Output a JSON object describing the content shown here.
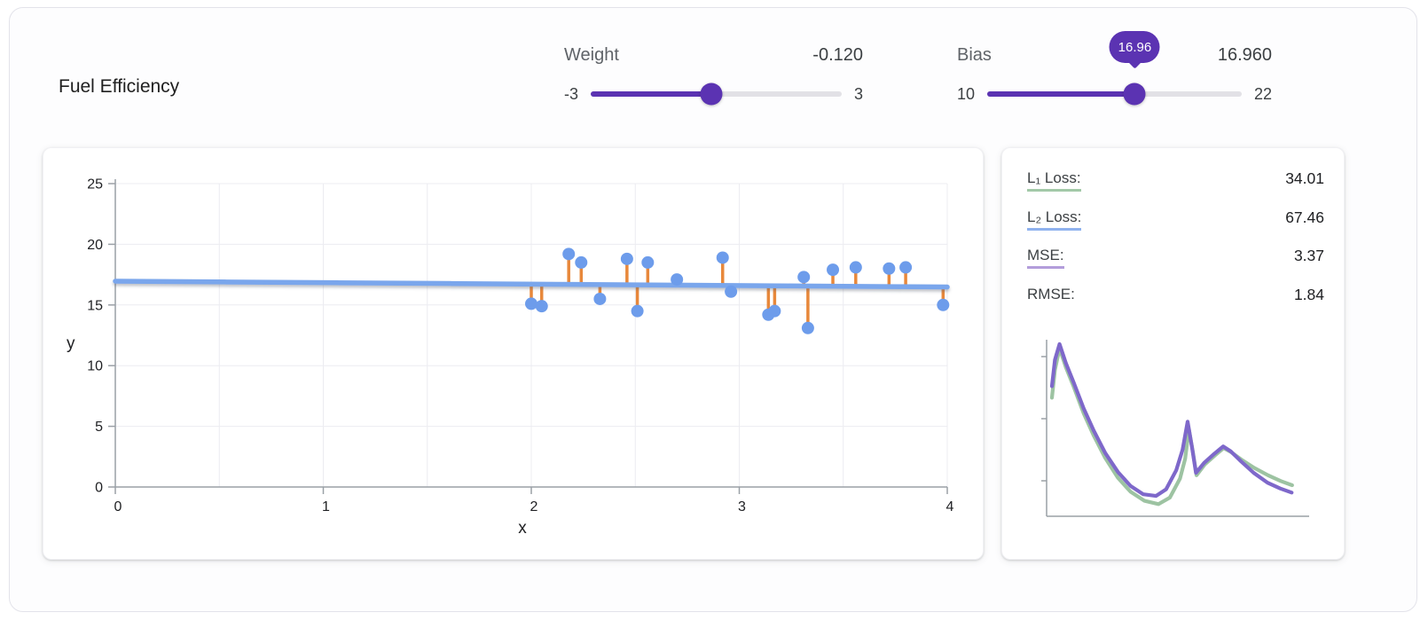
{
  "title": "Fuel Efficiency",
  "controls": {
    "weight": {
      "label": "Weight",
      "value": "-0.120",
      "min": "-3",
      "max": "3"
    },
    "bias": {
      "label": "Bias",
      "value": "16.960",
      "min": "10",
      "max": "22",
      "tooltip": "16.96"
    }
  },
  "colors": {
    "accent_purple": "#5b33b2",
    "track_gray": "#e2e1e6",
    "point_blue": "#6d9ceb",
    "line_blue": "#7aa6ec",
    "residual_orange": "#e8883b",
    "axis_gray": "#9aa0a6",
    "grid_gray": "#ececf1"
  },
  "chart_data": {
    "type": "scatter",
    "xlabel": "x",
    "ylabel": "y",
    "xlim": [
      0,
      4
    ],
    "ylim": [
      0,
      25
    ],
    "xticks": [
      0,
      1,
      2,
      3,
      4
    ],
    "xgrid": [
      0.5,
      1,
      1.5,
      2,
      2.5,
      3,
      3.5,
      4
    ],
    "yticks": [
      0,
      5,
      10,
      15,
      20,
      25
    ],
    "model_line": {
      "weight": -0.12,
      "bias": 16.96
    },
    "points": [
      {
        "x": 2.0,
        "y": 15.1
      },
      {
        "x": 2.05,
        "y": 14.9
      },
      {
        "x": 2.18,
        "y": 19.2
      },
      {
        "x": 2.24,
        "y": 18.5
      },
      {
        "x": 2.33,
        "y": 15.5
      },
      {
        "x": 2.46,
        "y": 18.8
      },
      {
        "x": 2.51,
        "y": 14.5
      },
      {
        "x": 2.56,
        "y": 18.5
      },
      {
        "x": 2.7,
        "y": 17.1
      },
      {
        "x": 2.92,
        "y": 18.9
      },
      {
        "x": 2.96,
        "y": 16.1
      },
      {
        "x": 3.14,
        "y": 14.2
      },
      {
        "x": 3.17,
        "y": 14.5
      },
      {
        "x": 3.31,
        "y": 17.3
      },
      {
        "x": 3.33,
        "y": 13.1
      },
      {
        "x": 3.45,
        "y": 17.9
      },
      {
        "x": 3.56,
        "y": 18.1
      },
      {
        "x": 3.72,
        "y": 18.0
      },
      {
        "x": 3.8,
        "y": 18.1
      },
      {
        "x": 3.98,
        "y": 15.0
      }
    ]
  },
  "loss_panel": {
    "metrics": [
      {
        "label": "L₁ Loss:",
        "value": "34.01",
        "color": "#a3c9a8"
      },
      {
        "label": "L₂ Loss:",
        "value": "67.46",
        "color": "#8fb2ee"
      },
      {
        "label": "MSE:",
        "value": "3.37",
        "color": "#b39ddb"
      },
      {
        "label": "RMSE:",
        "value": "1.84",
        "color": null
      }
    ],
    "curve_chart": {
      "type": "line",
      "title": "",
      "xlabel": "",
      "ylabel": "",
      "series": [
        {
          "name": "l1-loss-curve",
          "color": "#9dc3a2",
          "points": [
            [
              0.0,
              0.33
            ],
            [
              0.012,
              0.16
            ],
            [
              0.03,
              0.03
            ],
            [
              0.055,
              0.145
            ],
            [
              0.085,
              0.26
            ],
            [
              0.125,
              0.425
            ],
            [
              0.165,
              0.56
            ],
            [
              0.21,
              0.695
            ],
            [
              0.26,
              0.815
            ],
            [
              0.31,
              0.9
            ],
            [
              0.365,
              0.955
            ],
            [
              0.42,
              0.975
            ],
            [
              0.465,
              0.935
            ],
            [
              0.505,
              0.82
            ],
            [
              0.525,
              0.7
            ],
            [
              0.54,
              0.52
            ],
            [
              0.556,
              0.66
            ],
            [
              0.57,
              0.8
            ],
            [
              0.602,
              0.735
            ],
            [
              0.642,
              0.68
            ],
            [
              0.677,
              0.635
            ],
            [
              0.707,
              0.66
            ],
            [
              0.747,
              0.705
            ],
            [
              0.797,
              0.755
            ],
            [
              0.852,
              0.8
            ],
            [
              0.902,
              0.835
            ],
            [
              0.947,
              0.86
            ]
          ]
        },
        {
          "name": "mse-loss-curve",
          "color": "#7e68ca",
          "points": [
            [
              0.0,
              0.26
            ],
            [
              0.012,
              0.1
            ],
            [
              0.03,
              0.005
            ],
            [
              0.055,
              0.12
            ],
            [
              0.085,
              0.235
            ],
            [
              0.125,
              0.395
            ],
            [
              0.165,
              0.53
            ],
            [
              0.21,
              0.665
            ],
            [
              0.26,
              0.78
            ],
            [
              0.31,
              0.865
            ],
            [
              0.36,
              0.915
            ],
            [
              0.41,
              0.925
            ],
            [
              0.45,
              0.885
            ],
            [
              0.49,
              0.77
            ],
            [
              0.515,
              0.645
            ],
            [
              0.535,
              0.475
            ],
            [
              0.552,
              0.63
            ],
            [
              0.568,
              0.785
            ],
            [
              0.6,
              0.725
            ],
            [
              0.64,
              0.67
            ],
            [
              0.675,
              0.625
            ],
            [
              0.705,
              0.655
            ],
            [
              0.745,
              0.715
            ],
            [
              0.795,
              0.785
            ],
            [
              0.85,
              0.845
            ],
            [
              0.9,
              0.88
            ],
            [
              0.945,
              0.905
            ]
          ]
        }
      ]
    }
  }
}
